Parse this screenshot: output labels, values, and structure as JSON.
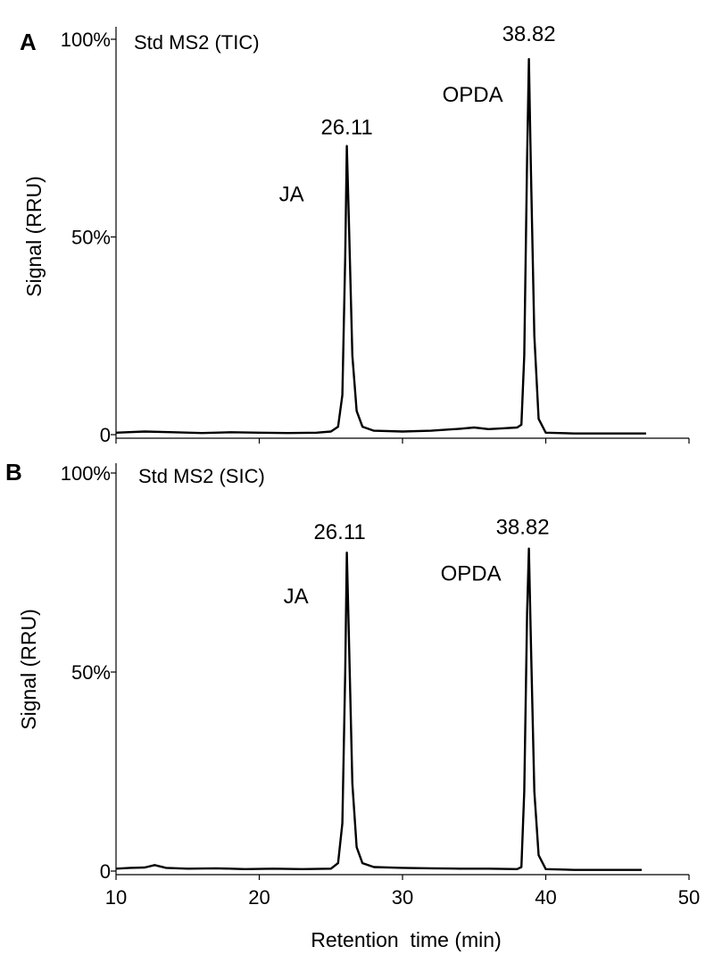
{
  "chart_data": [
    {
      "type": "line",
      "panel": "A",
      "title": "Std MS2 (TIC)",
      "ylabel": "Signal (RRU)",
      "xlim": [
        10,
        50
      ],
      "ylim": [
        0,
        100
      ],
      "y_ticks": [
        "0",
        "50%",
        "100%"
      ],
      "x_ticks": [
        10,
        20,
        30,
        40,
        50
      ],
      "x_tick_labels_visible": false,
      "series": [
        {
          "x": [
            10,
            12,
            14,
            16,
            18,
            20,
            22,
            24,
            25,
            25.5,
            25.8,
            26.0,
            26.11,
            26.25,
            26.5,
            26.8,
            27.2,
            28,
            30,
            32,
            34,
            35,
            36,
            37,
            38,
            38.3,
            38.5,
            38.7,
            38.82,
            38.95,
            39.2,
            39.5,
            40,
            42,
            44,
            47
          ],
          "y": [
            0.5,
            0.8,
            0.6,
            0.4,
            0.6,
            0.5,
            0.4,
            0.5,
            0.8,
            2,
            10,
            45,
            73,
            55,
            20,
            6,
            2,
            1,
            0.8,
            1,
            1.5,
            1.8,
            1.4,
            1.6,
            1.8,
            2.5,
            20,
            70,
            95,
            70,
            25,
            4,
            0.5,
            0.3,
            0.3,
            0.3
          ]
        }
      ],
      "annotations": [
        {
          "text": "26.11",
          "x": 26.11,
          "y": 73
        },
        {
          "text": "JA",
          "x": 26.11,
          "y": 73
        },
        {
          "text": "38.82",
          "x": 38.82,
          "y": 95
        },
        {
          "text": "OPDA",
          "x": 38.82,
          "y": 95
        }
      ]
    },
    {
      "type": "line",
      "panel": "B",
      "title": "Std MS2 (SIC)",
      "xlabel": "Retention  time (min)",
      "ylabel": "Signal (RRU)",
      "xlim": [
        10,
        50
      ],
      "ylim": [
        0,
        100
      ],
      "y_ticks": [
        "0",
        "50%",
        "100%"
      ],
      "x_ticks": [
        10,
        20,
        30,
        40,
        50
      ],
      "series": [
        {
          "x": [
            10,
            11,
            12,
            12.7,
            13.5,
            15,
            17,
            19,
            21,
            23,
            25,
            25.5,
            25.8,
            26.0,
            26.11,
            26.25,
            26.5,
            26.8,
            27.2,
            28,
            30,
            32,
            34,
            36,
            38,
            38.3,
            38.5,
            38.7,
            38.82,
            38.95,
            39.2,
            39.5,
            40,
            42,
            44,
            46.7
          ],
          "y": [
            0.6,
            0.8,
            0.9,
            1.5,
            0.8,
            0.6,
            0.7,
            0.5,
            0.6,
            0.5,
            0.6,
            2,
            12,
            50,
            80,
            60,
            22,
            6,
            2,
            1,
            0.8,
            0.7,
            0.6,
            0.6,
            0.5,
            1,
            20,
            65,
            81,
            60,
            20,
            4,
            0.5,
            0.3,
            0.3,
            0.3
          ]
        }
      ],
      "annotations": [
        {
          "text": "26.11",
          "x": 26.11,
          "y": 80
        },
        {
          "text": "JA",
          "x": 26.11,
          "y": 80
        },
        {
          "text": "38.82",
          "x": 38.82,
          "y": 81
        },
        {
          "text": "OPDA",
          "x": 38.82,
          "y": 81
        }
      ]
    }
  ]
}
